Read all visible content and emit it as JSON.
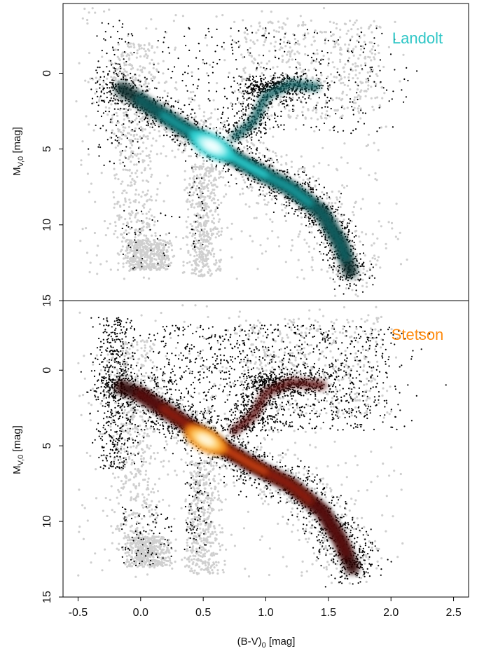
{
  "chart_data": [
    {
      "type": "scatter",
      "panel": "top",
      "label": "Landolt",
      "label_color": "#2ec6c6",
      "xlim": [
        -0.62,
        2.62
      ],
      "ylim": [
        15,
        -4.6
      ],
      "y_reversed": true,
      "ylabel_main": "M",
      "ylabel_sub": "V,0",
      "ylabel_unit": " [mag]",
      "y_ticks": [
        "0",
        "5",
        "10",
        "15"
      ],
      "y_tick_values": [
        0,
        5,
        10,
        15
      ],
      "background_color": "#cfcfcf",
      "points_color": "#000000",
      "density_colors": [
        "#0b2d2d",
        "#0f5e60",
        "#179b9e",
        "#2fd0d2",
        "#a8f2f2",
        "#f2ffff"
      ],
      "density_peak": {
        "x": 0.57,
        "y": 4.8
      },
      "background_structures": [
        {
          "x": [
            -0.2,
            0.1
          ],
          "y": [
            -2,
            11
          ]
        },
        {
          "x": [
            0.4,
            0.6
          ],
          "y": [
            6,
            13.5
          ]
        },
        {
          "x": [
            -0.1,
            0.2
          ],
          "y": [
            11,
            13
          ]
        },
        {
          "x": [
            0.8,
            1.9
          ],
          "y": [
            -3.5,
            3
          ]
        }
      ],
      "main_sequence": [
        [
          -0.25,
          0.5
        ],
        [
          0.0,
          1.8
        ],
        [
          0.3,
          3.4
        ],
        [
          0.6,
          4.9
        ],
        [
          0.9,
          6.3
        ],
        [
          1.2,
          7.6
        ],
        [
          1.45,
          9.2
        ],
        [
          1.6,
          11.3
        ],
        [
          1.7,
          13.6
        ]
      ],
      "giant_branch": [
        [
          0.75,
          4.2
        ],
        [
          0.9,
          3.2
        ],
        [
          1.0,
          1.5
        ],
        [
          1.2,
          0.7
        ],
        [
          1.4,
          0.9
        ]
      ],
      "red_clump": {
        "x": 1.0,
        "y": 0.8
      }
    },
    {
      "type": "scatter",
      "panel": "bottom",
      "label": "Stetson",
      "label_color": "#ff8c10",
      "xlim": [
        -0.62,
        2.62
      ],
      "ylim": [
        15,
        -4.6
      ],
      "y_reversed": true,
      "ylabel_main": "M",
      "ylabel_sub": "V,0",
      "ylabel_unit": " [mag]",
      "y_ticks": [
        "0",
        "5",
        "10",
        "15"
      ],
      "y_tick_values": [
        0,
        5,
        10,
        15
      ],
      "xlabel_main": "(B-V)",
      "xlabel_sub": "0",
      "xlabel_unit": " [mag]",
      "x_ticks": [
        "-0.5",
        "0.0",
        "0.5",
        "1.0",
        "1.5",
        "2.0",
        "2.5"
      ],
      "x_tick_values": [
        -0.5,
        0.0,
        0.5,
        1.0,
        1.5,
        2.0,
        2.5
      ],
      "background_color": "#cfcfcf",
      "points_color": "#000000",
      "density_colors": [
        "#2a0606",
        "#5a0f0a",
        "#93220f",
        "#cf4a10",
        "#f08a18",
        "#ffcf70",
        "#fff5d8"
      ],
      "density_peak": {
        "x": 0.52,
        "y": 4.6
      },
      "background_structures": [
        {
          "x": [
            -0.2,
            0.1
          ],
          "y": [
            -2,
            11
          ]
        },
        {
          "x": [
            0.4,
            0.6
          ],
          "y": [
            6,
            13.5
          ]
        },
        {
          "x": [
            -0.1,
            0.2
          ],
          "y": [
            11,
            13
          ]
        },
        {
          "x": [
            0.8,
            1.9
          ],
          "y": [
            -3.5,
            3
          ]
        }
      ],
      "main_sequence": [
        [
          -0.25,
          0.8
        ],
        [
          0.0,
          1.6
        ],
        [
          0.3,
          3.2
        ],
        [
          0.55,
          4.6
        ],
        [
          0.9,
          6.3
        ],
        [
          1.2,
          7.6
        ],
        [
          1.45,
          9.3
        ],
        [
          1.6,
          11.3
        ],
        [
          1.72,
          13.6
        ]
      ],
      "giant_branch": [
        [
          0.75,
          4.0
        ],
        [
          0.9,
          3.0
        ],
        [
          1.0,
          1.5
        ],
        [
          1.2,
          0.8
        ],
        [
          1.45,
          1.0
        ]
      ],
      "red_clump": {
        "x": 1.05,
        "y": 0.8
      }
    }
  ]
}
